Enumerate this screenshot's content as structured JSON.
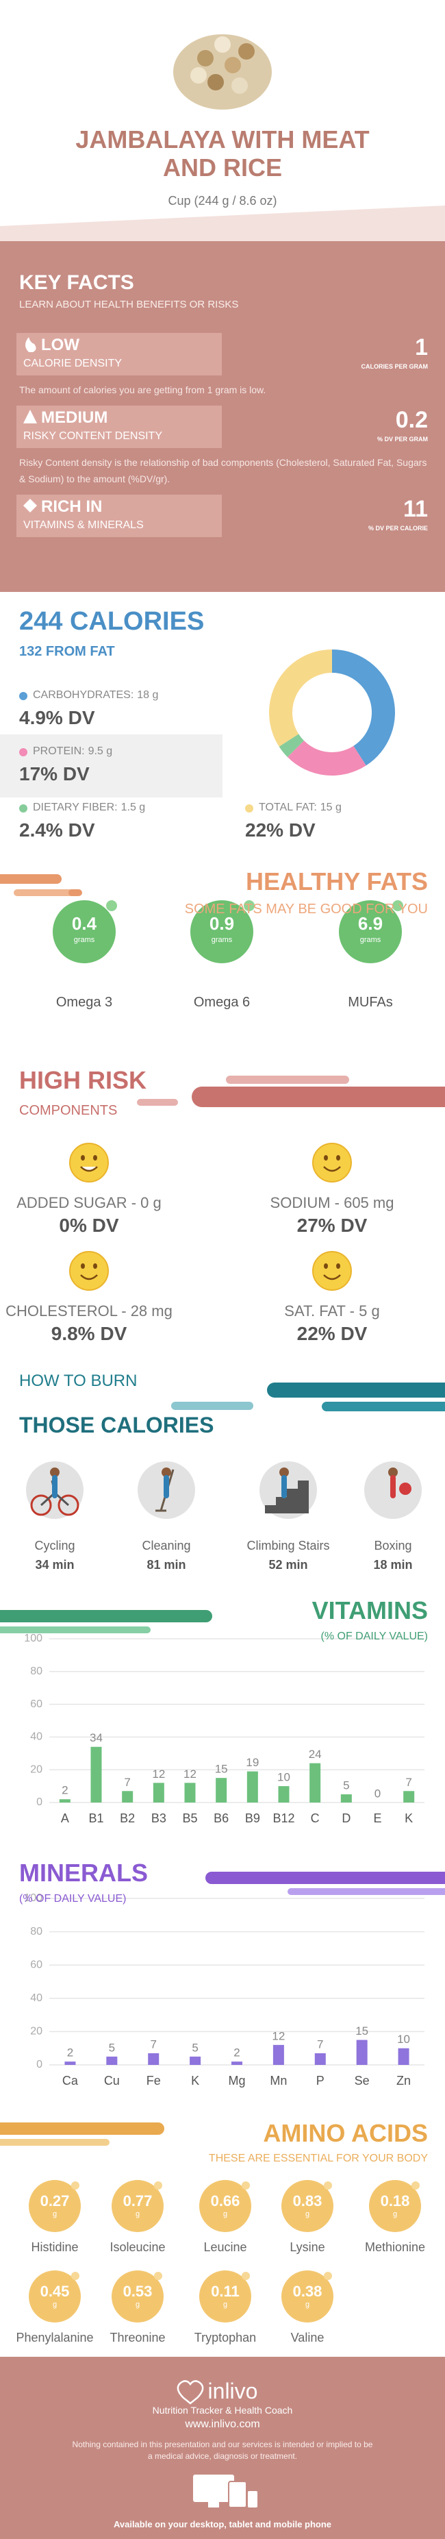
{
  "header": {
    "title": "JAMBALAYA WITH MEAT AND RICE",
    "serving": "Cup (244 g / 8.6 oz)"
  },
  "key_facts": {
    "title": "KEY FACTS",
    "subtitle": "LEARN ABOUT HEALTH BENEFITS OR RISKS",
    "items": [
      {
        "level": "LOW",
        "label": "CALORIE DENSITY",
        "value": "1",
        "unit": "CALORIES PER GRAM",
        "description": "The amount of calories you are getting from 1 gram is low."
      },
      {
        "level": "MEDIUM",
        "label": "RISKY CONTENT DENSITY",
        "value": "0.2",
        "unit": "% DV PER GRAM",
        "description": "Risky Content density is the relationship of bad components (Cholesterol, Saturated Fat, Sugars & Sodium) to the amount (%DV/gr)."
      },
      {
        "level": "RICH IN",
        "label": "VITAMINS & MINERALS",
        "value": "11",
        "unit": "% DV PER CALORIE"
      }
    ]
  },
  "calories": {
    "title": "244 CALORIES",
    "subtitle": "132 FROM FAT",
    "nutrients": [
      {
        "name": "CARBOHYDRATES:",
        "value": 18,
        "value_label": "18 g",
        "dv": "4.9% DV",
        "color": "#5a9fd6"
      },
      {
        "name": "PROTEIN:",
        "value": 9.5,
        "value_label": "9.5 g",
        "dv": "17% DV",
        "color": "#f28bb5"
      },
      {
        "name": "DIETARY FIBER:",
        "value": 1.5,
        "value_label": "1.5 g",
        "dv": "2.4% DV",
        "color": "#86cc9a"
      },
      {
        "name": "TOTAL FAT:",
        "value": 15,
        "value_label": "15 g",
        "dv": "22% DV",
        "color": "#f7d98a"
      }
    ]
  },
  "healthy_fats": {
    "title": "HEALTHY FATS",
    "subtitle": "SOME FATS MAY BE GOOD FOR YOU",
    "items": [
      {
        "value": "0.4",
        "unit": "grams",
        "name": "Omega 3"
      },
      {
        "value": "0.9",
        "unit": "grams",
        "name": "Omega 6"
      },
      {
        "value": "6.9",
        "unit": "grams",
        "name": "MUFAs"
      }
    ]
  },
  "high_risk": {
    "title": "HIGH RISK",
    "subtitle": "COMPONENTS",
    "items": [
      {
        "label": "ADDED SUGAR - 0 g",
        "dv": "0% DV"
      },
      {
        "label": "SODIUM - 605 mg",
        "dv": "27% DV"
      },
      {
        "label": "CHOLESTEROL - 28 mg",
        "dv": "9.8% DV"
      },
      {
        "label": "SAT. FAT - 5 g",
        "dv": "22% DV"
      }
    ]
  },
  "burn": {
    "title_top": "HOW TO BURN",
    "title": "THOSE CALORIES",
    "activities": [
      {
        "name": "Cycling",
        "time": "34 min"
      },
      {
        "name": "Cleaning",
        "time": "81 min"
      },
      {
        "name": "Climbing Stairs",
        "time": "52 min"
      },
      {
        "name": "Boxing",
        "time": "18 min"
      }
    ]
  },
  "chart_data": [
    {
      "type": "bar",
      "title": "VITAMINS",
      "subtitle": "(% OF DAILY VALUE)",
      "categories": [
        "A",
        "B1",
        "B2",
        "B3",
        "B5",
        "B6",
        "B9",
        "B12",
        "C",
        "D",
        "E",
        "K"
      ],
      "values": [
        2,
        34,
        7,
        12,
        12,
        15,
        19,
        10,
        24,
        5,
        0,
        7
      ],
      "color": "#6cc07c",
      "ylim": [
        0,
        100
      ],
      "yticks": [
        0,
        20,
        40,
        60,
        80,
        100
      ],
      "grid": true
    },
    {
      "type": "bar",
      "title": "MINERALS",
      "subtitle": "(% OF DAILY VALUE)",
      "categories": [
        "Ca",
        "Cu",
        "Fe",
        "K",
        "Mg",
        "Mn",
        "P",
        "Se",
        "Zn"
      ],
      "values": [
        2,
        5,
        7,
        5,
        2,
        12,
        7,
        15,
        10
      ],
      "color": "#8e74dc",
      "ylim": [
        0,
        100
      ],
      "yticks": [
        0,
        20,
        40,
        60,
        80,
        100
      ],
      "grid": true
    }
  ],
  "amino_acids": {
    "title": "AMINO ACIDS",
    "subtitle": "THESE ARE ESSENTIAL FOR YOUR BODY",
    "items": [
      {
        "value": "0.27",
        "unit": "g",
        "name": "Histidine"
      },
      {
        "value": "0.77",
        "unit": "g",
        "name": "Isoleucine"
      },
      {
        "value": "0.66",
        "unit": "g",
        "name": "Leucine"
      },
      {
        "value": "0.83",
        "unit": "g",
        "name": "Lysine"
      },
      {
        "value": "0.18",
        "unit": "g",
        "name": "Methionine"
      },
      {
        "value": "0.45",
        "unit": "g",
        "name": "Phenylalanine"
      },
      {
        "value": "0.53",
        "unit": "g",
        "name": "Threonine"
      },
      {
        "value": "0.11",
        "unit": "g",
        "name": "Tryptophan"
      },
      {
        "value": "0.38",
        "unit": "g",
        "name": "Valine"
      }
    ]
  },
  "footer": {
    "brand": "inlivo",
    "tagline": "Nutrition Tracker & Health Coach",
    "url": "www.inlivo.com",
    "disclaimer": "Nothing contained in this presentation and our services is intended or implied to be a medical advice, diagnosis or treatment.",
    "availability": "Available on your desktop, tablet and mobile phone"
  }
}
